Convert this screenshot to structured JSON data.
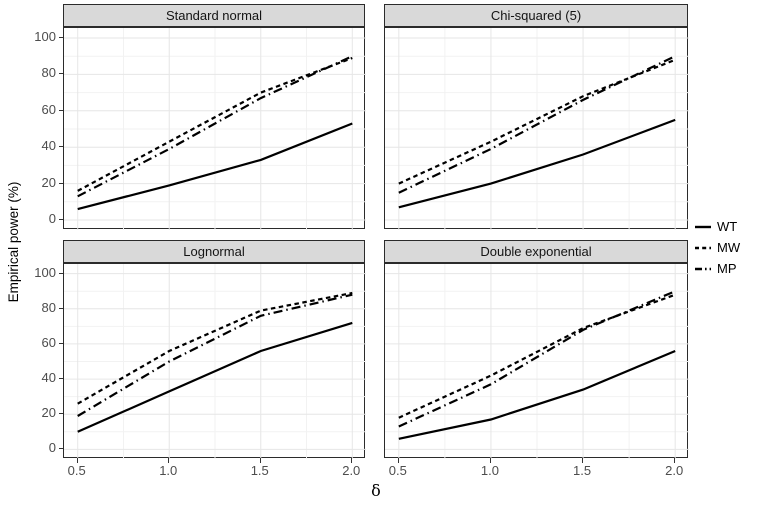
{
  "chart_data": {
    "type": "line",
    "title": "",
    "xlabel": "δ",
    "ylabel": "Empirical power (%)",
    "x": [
      0.5,
      1.0,
      1.5,
      2.0
    ],
    "x_tick_labels": [
      "0.5",
      "1.0",
      "1.5",
      "2.0"
    ],
    "y_ticks": [
      0,
      20,
      40,
      60,
      80,
      100
    ],
    "xlim": [
      0.5,
      2.0
    ],
    "ylim": [
      0,
      100
    ],
    "grid": "on",
    "facets": [
      {
        "title": "Standard normal",
        "series": [
          {
            "name": "WT",
            "linetype": "solid",
            "values": [
              6,
              19,
              33,
              53
            ]
          },
          {
            "name": "MW",
            "linetype": "dashed",
            "values": [
              16,
              43,
              70,
              89
            ]
          },
          {
            "name": "MP",
            "linetype": "dotdash",
            "values": [
              13,
              39,
              67,
              90
            ]
          }
        ]
      },
      {
        "title": "Chi-squared (5)",
        "series": [
          {
            "name": "WT",
            "linetype": "solid",
            "values": [
              7,
              20,
              36,
              55
            ]
          },
          {
            "name": "MW",
            "linetype": "dashed",
            "values": [
              20,
              43,
              68,
              88
            ]
          },
          {
            "name": "MP",
            "linetype": "dotdash",
            "values": [
              15,
              39,
              66,
              90
            ]
          }
        ]
      },
      {
        "title": "Lognormal",
        "series": [
          {
            "name": "WT",
            "linetype": "solid",
            "values": [
              10,
              33,
              56,
              72
            ]
          },
          {
            "name": "MW",
            "linetype": "dashed",
            "values": [
              26,
              56,
              79,
              89
            ]
          },
          {
            "name": "MP",
            "linetype": "dotdash",
            "values": [
              19,
              50,
              76,
              88
            ]
          }
        ]
      },
      {
        "title": "Double exponential",
        "series": [
          {
            "name": "WT",
            "linetype": "solid",
            "values": [
              6,
              17,
              34,
              56
            ]
          },
          {
            "name": "MW",
            "linetype": "dashed",
            "values": [
              18,
              42,
              69,
              88
            ]
          },
          {
            "name": "MP",
            "linetype": "dotdash",
            "values": [
              13,
              37,
              68,
              90
            ]
          }
        ]
      }
    ],
    "legend": {
      "position": "right",
      "entries": [
        {
          "label": "WT",
          "linetype": "solid"
        },
        {
          "label": "MW",
          "linetype": "dashed"
        },
        {
          "label": "MP",
          "linetype": "dotdash"
        }
      ]
    },
    "styles": {
      "line_color": "#000000",
      "strip_bg": "#d9d9d9",
      "panel_border": "#2b2b2b",
      "grid_major": "#e6e6e6",
      "grid_minor": "#f2f2f2",
      "tick_text": "#4d4d4d"
    }
  }
}
